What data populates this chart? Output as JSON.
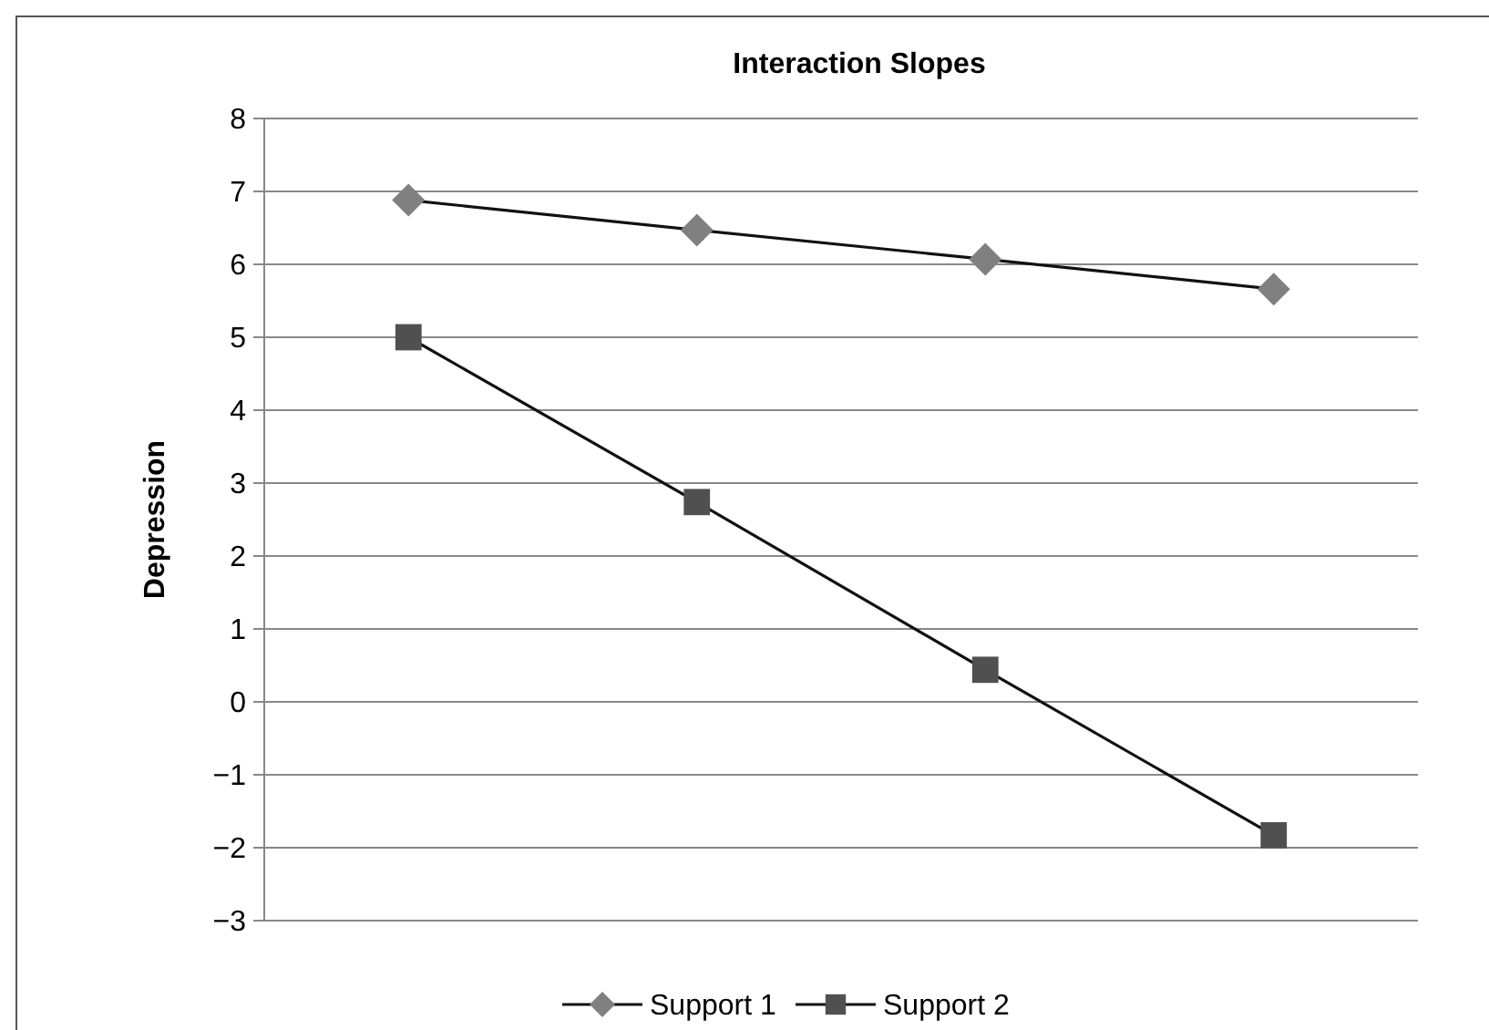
{
  "chart_data": {
    "type": "line",
    "title": "Interaction Slopes",
    "ylabel": "Depression",
    "categories": [
      null,
      null,
      null,
      null
    ],
    "series": [
      {
        "name": "Support 1",
        "color": "#808080",
        "marker": "diamond",
        "values": [
          6.88,
          6.47,
          6.07,
          5.66
        ]
      },
      {
        "name": "Support 2",
        "color": "#505050",
        "marker": "square",
        "values": [
          5.0,
          2.74,
          0.44,
          -1.83
        ]
      }
    ],
    "ylim": [
      -3,
      8
    ],
    "yticks": [
      {
        "value": -3,
        "label": "−3"
      },
      {
        "value": -2,
        "label": "−2"
      },
      {
        "value": -1,
        "label": "−1"
      },
      0,
      1,
      2,
      3,
      4,
      5,
      6,
      7,
      8
    ],
    "grid": "y",
    "legend": "bottom",
    "line_style": "solid"
  }
}
